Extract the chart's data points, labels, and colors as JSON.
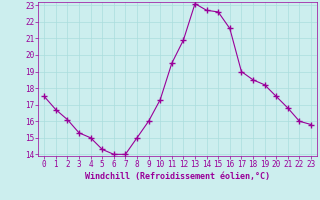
{
  "x": [
    0,
    1,
    2,
    3,
    4,
    5,
    6,
    7,
    8,
    9,
    10,
    11,
    12,
    13,
    14,
    15,
    16,
    17,
    18,
    19,
    20,
    21,
    22,
    23
  ],
  "y": [
    17.5,
    16.7,
    16.1,
    15.3,
    15.0,
    14.3,
    14.0,
    14.0,
    15.0,
    16.0,
    17.3,
    19.5,
    20.9,
    23.1,
    22.7,
    22.6,
    21.6,
    19.0,
    18.5,
    18.2,
    17.5,
    16.8,
    16.0,
    15.8
  ],
  "line_color": "#990099",
  "marker": "+",
  "marker_size": 4,
  "background_color": "#cceeee",
  "grid_color": "#aadddd",
  "xlabel": "Windchill (Refroidissement éolien,°C)",
  "tick_color": "#990099",
  "ylim": [
    14,
    23
  ],
  "xlim": [
    -0.5,
    23.5
  ],
  "yticks": [
    14,
    15,
    16,
    17,
    18,
    19,
    20,
    21,
    22,
    23
  ],
  "xticks": [
    0,
    1,
    2,
    3,
    4,
    5,
    6,
    7,
    8,
    9,
    10,
    11,
    12,
    13,
    14,
    15,
    16,
    17,
    18,
    19,
    20,
    21,
    22,
    23
  ],
  "tick_fontsize": 5.5,
  "xlabel_fontsize": 6.0
}
